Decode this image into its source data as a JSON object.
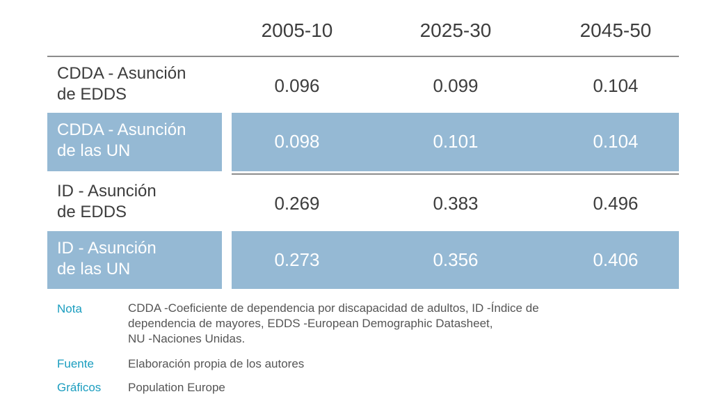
{
  "columns": [
    "2005-10",
    "2025-30",
    "2045-50"
  ],
  "rows": [
    {
      "label_line1": "CDDA - Asunción",
      "label_line2": "de EDDS",
      "values": [
        "0.096",
        "0.099",
        "0.104"
      ]
    },
    {
      "label_line1": "CDDA - Asunción",
      "label_line2": "de las UN",
      "values": [
        "0.098",
        "0.101",
        "0.104"
      ]
    },
    {
      "label_line1": "ID - Asunción",
      "label_line2": "de EDDS",
      "values": [
        "0.269",
        "0.383",
        "0.496"
      ]
    },
    {
      "label_line1": "ID - Asunción",
      "label_line2": "de las UN",
      "values": [
        "0.273",
        "0.356",
        "0.406"
      ]
    }
  ],
  "notes": {
    "nota_label": "Nota",
    "nota_line1": "CDDA -Coeficiente de dependencia por discapacidad de adultos, ID -Índice de",
    "nota_line2": "dependencia de mayores, EDDS -European Demographic Datasheet,",
    "nota_line3": "NU -Naciones Unidas.",
    "fuente_label": "Fuente",
    "fuente_text": "Elaboración propia de los autores",
    "graficos_label": "Gráficos",
    "graficos_text": "Population Europe"
  },
  "colors": {
    "highlight_band": "#95b9d4",
    "note_label": "#1a9dbf",
    "rule": "#8c8c8c"
  }
}
